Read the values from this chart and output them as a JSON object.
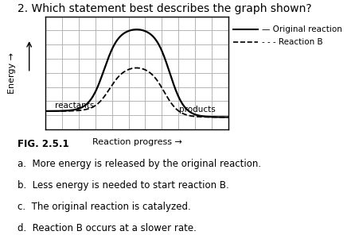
{
  "title": "2. Which statement best describes the graph shown?",
  "title_fontsize": 10,
  "xlabel": "Reaction progress →",
  "ylabel": "Energy →",
  "fig_caption": "FIG. 2.5.1",
  "answers": [
    "a.  More energy is released by the original reaction.",
    "b.  Less energy is needed to start reaction B.",
    "c.  The original reaction is catalyzed.",
    "d.  Reaction B occurs at a slower rate."
  ],
  "reactants_label": "reactants",
  "products_label": "products",
  "legend_original": "Original reaction",
  "legend_b": "Reaction B",
  "background_color": "#ffffff",
  "grid_color": "#aaaaaa",
  "curve_color": "#000000",
  "answer_fontsize": 8.5,
  "caption_fontsize": 8.5,
  "axis_label_fontsize": 8,
  "annotation_fontsize": 7.5
}
